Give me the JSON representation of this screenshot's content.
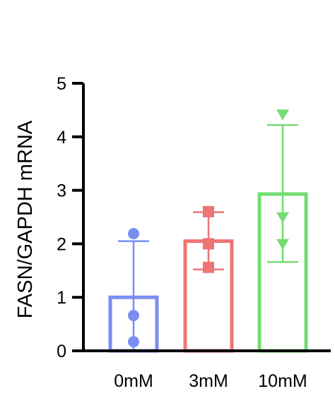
{
  "chart_data": {
    "type": "bar",
    "title": "",
    "xlabel": "",
    "ylabel": "FASN/GAPDH mRNA",
    "ylim": [
      0,
      5
    ],
    "yticks": [
      0,
      1,
      2,
      3,
      4,
      5
    ],
    "categories": [
      "0mM",
      "3mM",
      "10mM"
    ],
    "values": [
      1.0,
      2.05,
      2.93
    ],
    "error_low": [
      0.0,
      1.52,
      1.66
    ],
    "error_high": [
      2.05,
      2.59,
      4.22
    ],
    "points": [
      [
        2.19,
        0.66,
        0.17
      ],
      [
        2.6,
        2.0,
        1.56
      ],
      [
        4.42,
        2.5,
        2.0
      ]
    ],
    "markers": [
      "circle",
      "square",
      "triangle-down"
    ],
    "colors": [
      "#7a8ef2",
      "#ef7474",
      "#74dc74"
    ],
    "grid": false,
    "legend": "none"
  }
}
